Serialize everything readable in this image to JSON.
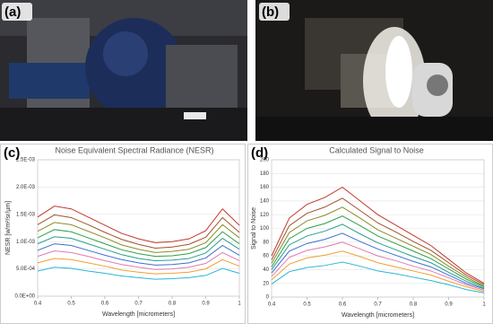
{
  "photos": [
    {
      "label": "(a)"
    },
    {
      "label": "(b)"
    }
  ],
  "chart_data": [
    {
      "type": "line",
      "panel_label": "(c)",
      "title": "Noise Equivalent Spectral Radiance (NESR)",
      "x_label": "Wavelength [micrometers]",
      "y_label": "NESR [w/m²/sr/µm]",
      "x": [
        0.4,
        0.45,
        0.5,
        0.55,
        0.6,
        0.65,
        0.7,
        0.75,
        0.8,
        0.85,
        0.9,
        0.95,
        1.0
      ],
      "xlim": [
        0.4,
        1.0
      ],
      "xticks": [
        0.4,
        0.5,
        0.6,
        0.7,
        0.8,
        0.9,
        1
      ],
      "ylim": [
        0,
        0.0025
      ],
      "yticks": [
        {
          "value": 0,
          "label": "0.0E+00"
        },
        {
          "value": 0.0005,
          "label": "5.0E-04"
        },
        {
          "value": 0.001,
          "label": "1.0E-03"
        },
        {
          "value": 0.0015,
          "label": "1.5E-03"
        },
        {
          "value": 0.002,
          "label": "2.0E-03"
        },
        {
          "value": 0.0025,
          "label": "2.5E-03"
        }
      ],
      "grid": true,
      "series": [
        {
          "color": "#c0392b",
          "values": [
            0.00145,
            0.00165,
            0.0016,
            0.00145,
            0.0013,
            0.00115,
            0.00105,
            0.00098,
            0.001,
            0.00105,
            0.0012,
            0.0016,
            0.0013
          ]
        },
        {
          "color": "#a0522d",
          "values": [
            0.00131,
            0.00149,
            0.00144,
            0.00131,
            0.00117,
            0.00104,
            0.00095,
            0.00088,
            0.0009,
            0.00095,
            0.00108,
            0.00144,
            0.00117
          ]
        },
        {
          "color": "#8c8c2a",
          "values": [
            0.00119,
            0.00135,
            0.00131,
            0.00119,
            0.00107,
            0.00094,
            0.00086,
            0.0008,
            0.00082,
            0.00086,
            0.00098,
            0.00131,
            0.00107
          ]
        },
        {
          "color": "#2e9e4a",
          "values": [
            0.00107,
            0.00122,
            0.00118,
            0.00107,
            0.00096,
            0.00085,
            0.00078,
            0.00073,
            0.00074,
            0.00078,
            0.00089,
            0.00118,
            0.00096
          ]
        },
        {
          "color": "#2a9d8f",
          "values": [
            0.00096,
            0.00109,
            0.00106,
            0.00096,
            0.00086,
            0.00076,
            0.00069,
            0.00065,
            0.00066,
            0.00069,
            0.00079,
            0.00106,
            0.00086
          ]
        },
        {
          "color": "#3b6fd0",
          "values": [
            0.00084,
            0.00096,
            0.00093,
            0.00084,
            0.00075,
            0.00067,
            0.00061,
            0.00057,
            0.00058,
            0.00061,
            0.0007,
            0.00093,
            0.00075
          ]
        },
        {
          "color": "#e07ab0",
          "values": [
            0.00073,
            0.00083,
            0.0008,
            0.00073,
            0.00065,
            0.00058,
            0.00053,
            0.00049,
            0.0005,
            0.00053,
            0.0006,
            0.0008,
            0.00065
          ]
        },
        {
          "color": "#f0a030",
          "values": [
            0.00061,
            0.00069,
            0.00067,
            0.00061,
            0.00055,
            0.00048,
            0.00044,
            0.00041,
            0.00042,
            0.00044,
            0.0005,
            0.00067,
            0.00055
          ]
        },
        {
          "color": "#29b6d6",
          "values": [
            0.00046,
            0.00053,
            0.00051,
            0.00046,
            0.00042,
            0.00037,
            0.00034,
            0.00031,
            0.00032,
            0.00034,
            0.00038,
            0.00051,
            0.00042
          ]
        }
      ]
    },
    {
      "type": "line",
      "panel_label": "(d)",
      "title": "Calculated Signal to Noise",
      "x_label": "Wavelength [micrometers]",
      "y_label": "Signal to Noise",
      "x": [
        0.4,
        0.45,
        0.5,
        0.55,
        0.6,
        0.65,
        0.7,
        0.75,
        0.8,
        0.85,
        0.9,
        0.95,
        1.0
      ],
      "xlim": [
        0.4,
        1.0
      ],
      "xticks": [
        0.4,
        0.5,
        0.6,
        0.7,
        0.8,
        0.9,
        1
      ],
      "ylim": [
        0,
        200
      ],
      "yticks": [
        0,
        20,
        40,
        60,
        80,
        100,
        120,
        140,
        160,
        180,
        200
      ],
      "grid": true,
      "series": [
        {
          "color": "#c0392b",
          "values": [
            60,
            115,
            135,
            145,
            160,
            140,
            120,
            105,
            90,
            75,
            55,
            35,
            20
          ]
        },
        {
          "color": "#a0522d",
          "values": [
            54,
            104,
            122,
            131,
            144,
            126,
            108,
            95,
            81,
            68,
            50,
            32,
            18
          ]
        },
        {
          "color": "#8c8c2a",
          "values": [
            49,
            94,
            111,
            119,
            131,
            115,
            98,
            86,
            74,
            62,
            45,
            29,
            16
          ]
        },
        {
          "color": "#2e9e4a",
          "values": [
            44,
            85,
            100,
            107,
            118,
            104,
            89,
            78,
            67,
            56,
            41,
            26,
            15
          ]
        },
        {
          "color": "#2a9d8f",
          "values": [
            40,
            76,
            89,
            96,
            106,
            92,
            79,
            69,
            59,
            50,
            36,
            23,
            13
          ]
        },
        {
          "color": "#3b6fd0",
          "values": [
            35,
            67,
            78,
            84,
            93,
            81,
            70,
            61,
            52,
            44,
            32,
            20,
            12
          ]
        },
        {
          "color": "#e07ab0",
          "values": [
            30,
            58,
            68,
            73,
            80,
            70,
            60,
            53,
            45,
            38,
            28,
            18,
            10
          ]
        },
        {
          "color": "#f0a030",
          "values": [
            25,
            48,
            57,
            61,
            67,
            59,
            50,
            44,
            38,
            32,
            23,
            15,
            8
          ]
        },
        {
          "color": "#29b6d6",
          "values": [
            19,
            37,
            43,
            46,
            51,
            45,
            38,
            34,
            29,
            24,
            18,
            11,
            6
          ]
        }
      ]
    }
  ]
}
